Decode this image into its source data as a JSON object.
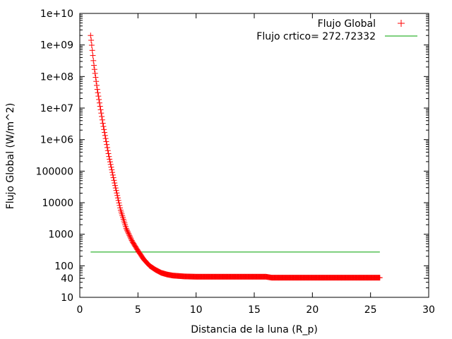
{
  "chart_data": {
    "type": "scatter",
    "xlabel": "Distancia de la luna (R_p)",
    "ylabel": "Flujo Global (W/m^2)",
    "xlim": [
      0,
      30
    ],
    "ylim": [
      10,
      10000000000
    ],
    "yscale": "log",
    "grid": false,
    "legend_placement": "top-right",
    "x_ticks": [
      0,
      5,
      10,
      15,
      20,
      25,
      30
    ],
    "x_tick_labels": [
      "0",
      "5",
      "10",
      "15",
      "20",
      "25",
      "30"
    ],
    "y_ticks": [
      10,
      40,
      100,
      1000,
      10000,
      100000,
      1000000,
      10000000,
      100000000,
      1000000000,
      10000000000
    ],
    "y_tick_labels": [
      "10",
      "40",
      "100",
      "1000",
      "10000",
      "100000",
      "1e+06",
      "1e+07",
      "1e+08",
      "1e+09",
      "1e+10"
    ],
    "series": [
      {
        "name": "Flujo Global",
        "marker": "plus",
        "color": "#ff0000",
        "x_range": [
          0.93,
          25.8
        ],
        "points": [
          [
            0.93,
            2000000000
          ],
          [
            1.0,
            1200000000
          ],
          [
            1.2,
            250000000
          ],
          [
            1.5,
            40000000
          ],
          [
            2.0,
            3000000
          ],
          [
            2.5,
            300000
          ],
          [
            3.0,
            40000
          ],
          [
            3.5,
            6000
          ],
          [
            4.0,
            1500
          ],
          [
            4.5,
            600
          ],
          [
            5.0,
            300
          ],
          [
            5.5,
            160
          ],
          [
            6.0,
            100
          ],
          [
            6.5,
            75
          ],
          [
            7.0,
            60
          ],
          [
            7.5,
            53
          ],
          [
            8.0,
            49
          ],
          [
            9.0,
            46
          ],
          [
            10.0,
            45
          ],
          [
            16.0,
            45
          ],
          [
            16.5,
            42
          ],
          [
            25.8,
            42
          ]
        ]
      },
      {
        "name": "Flujo crtico= 272.72332",
        "marker": "line",
        "color": "#00a000",
        "x_range": [
          0.93,
          25.8
        ],
        "y": 272.72332
      }
    ]
  }
}
